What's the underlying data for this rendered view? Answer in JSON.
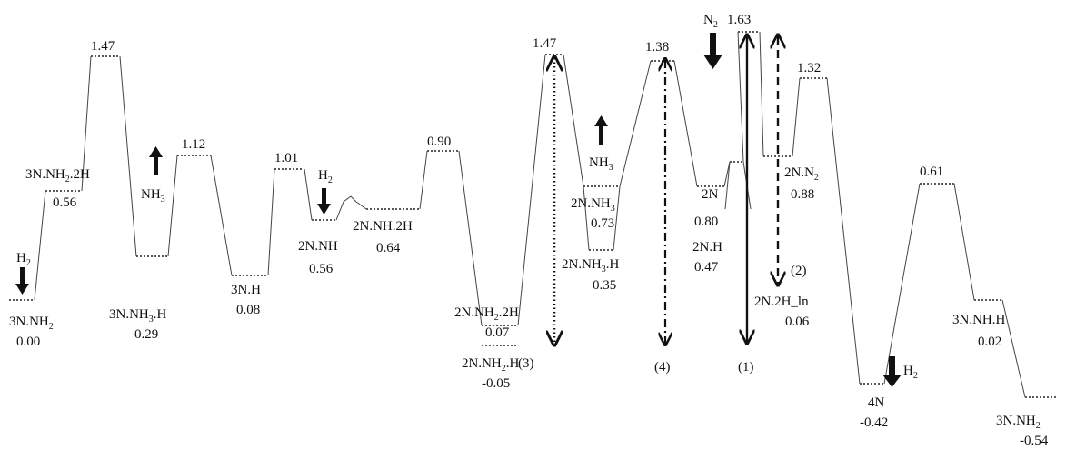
{
  "diagram": {
    "states": [
      {
        "id": "s1",
        "label": "3N.NH2",
        "energy": "0.00"
      },
      {
        "id": "s2",
        "label": "3N.NH2.2H",
        "energy": "0.56"
      },
      {
        "id": "s3",
        "label": "",
        "energy": "1.47"
      },
      {
        "id": "s4",
        "label": "3N.NH3.H",
        "energy": "0.29"
      },
      {
        "id": "s5",
        "label": "",
        "energy": "1.12"
      },
      {
        "id": "s6",
        "label": "3N.H",
        "energy": "0.08"
      },
      {
        "id": "s7",
        "label": "",
        "energy": "1.01"
      },
      {
        "id": "s8",
        "label": "2N.NH",
        "energy": "0.56"
      },
      {
        "id": "s9",
        "label": "2N.NH.2H",
        "energy": "0.64"
      },
      {
        "id": "s10",
        "label": "",
        "energy": "0.90"
      },
      {
        "id": "s11",
        "label": "2N.NH2.2H",
        "energy": "0.07"
      },
      {
        "id": "s12",
        "label": "2N.NH2.H",
        "energy": "-0.05"
      },
      {
        "id": "s13",
        "label": "",
        "energy": "1.47"
      },
      {
        "id": "s14",
        "label": "2N.NH3",
        "energy": "0.73"
      },
      {
        "id": "s15",
        "label": "2N.NH3.H",
        "energy": "0.35"
      },
      {
        "id": "s16",
        "label": "",
        "energy": "1.38"
      },
      {
        "id": "s17",
        "label": "2N",
        "energy": "0.80"
      },
      {
        "id": "s18",
        "label": "2N.H",
        "energy": "0.47"
      },
      {
        "id": "s19",
        "label": "",
        "energy": "1.63"
      },
      {
        "id": "s20",
        "label": "2N.N2",
        "energy": "0.88"
      },
      {
        "id": "s21",
        "label": "",
        "energy": "1.32"
      },
      {
        "id": "s22",
        "label": "2N.2H_ln",
        "energy": "0.06"
      },
      {
        "id": "s23",
        "label": "4N",
        "energy": "-0.42"
      },
      {
        "id": "s24",
        "label": "",
        "energy": "0.61"
      },
      {
        "id": "s25",
        "label": "3N.NH.H",
        "energy": "0.02"
      },
      {
        "id": "s26",
        "label": "3N.NH2",
        "energy": "-0.54"
      }
    ],
    "species": {
      "h2_a": "H2",
      "nh3_a": "NH3",
      "h2_b": "H2",
      "nh3_b": "NH3",
      "n2": "N2",
      "h2_c": "H2"
    },
    "arrow_labels": {
      "a1": "(1)",
      "a2": "(2)",
      "a3": "(3)",
      "a4": "(4)"
    }
  }
}
